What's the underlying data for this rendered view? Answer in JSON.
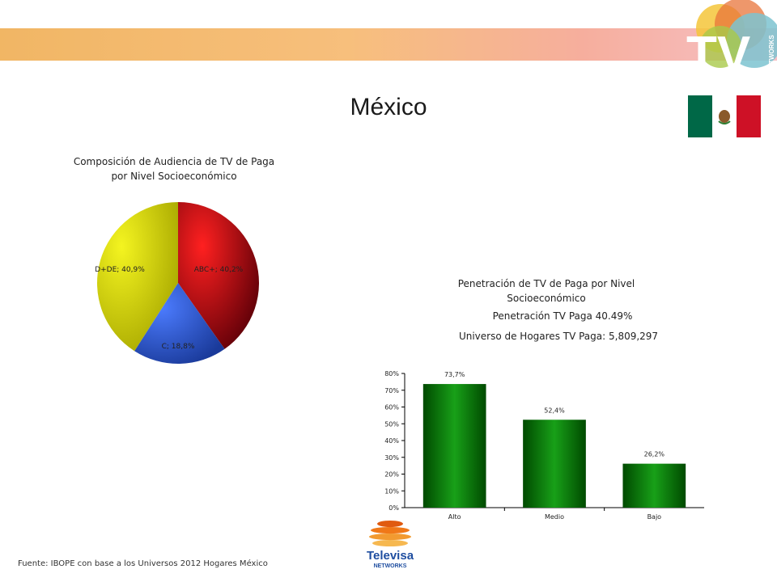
{
  "page": {
    "title": "México",
    "source": "Fuente: IBOPE con base a los Universos 2012 Hogares México"
  },
  "brand": {
    "tv_logo_text": "TV",
    "tv_logo_subtext": "NETWORKS",
    "televisa_text": "Televisa",
    "televisa_subtext": "NETWORKS"
  },
  "colors": {
    "pie_abc": "#b00010",
    "pie_c": "#2a56d8",
    "pie_dde": "#d4d400",
    "bar": "#0a7a0a",
    "flag_green": "#006847",
    "flag_red": "#ce1126"
  },
  "chart_data": [
    {
      "type": "pie",
      "title": "Composición de Audiencia de TV de Paga por Nivel Socioeconómico",
      "categories": [
        "ABC+",
        "C",
        "D+DE"
      ],
      "values": [
        40.2,
        18.8,
        40.9
      ],
      "labels": [
        "ABC+; 40,2%",
        "C; 18,8%",
        "D+DE; 40,9%"
      ]
    },
    {
      "type": "bar",
      "title": "Penetración de TV de Paga por Nivel Socioeconómico",
      "subtitle_lines": [
        "Penetración TV Paga 40.49%",
        "Universo de Hogares TV Paga: 5,809,297"
      ],
      "categories": [
        "Alto",
        "Medio",
        "Bajo"
      ],
      "values": [
        73.7,
        52.4,
        26.2
      ],
      "value_labels": [
        "73,7%",
        "52,4%",
        "26,2%"
      ],
      "ylim": [
        0,
        80
      ],
      "yticks": [
        "0%",
        "10%",
        "20%",
        "30%",
        "40%",
        "50%",
        "60%",
        "70%",
        "80%"
      ]
    }
  ]
}
